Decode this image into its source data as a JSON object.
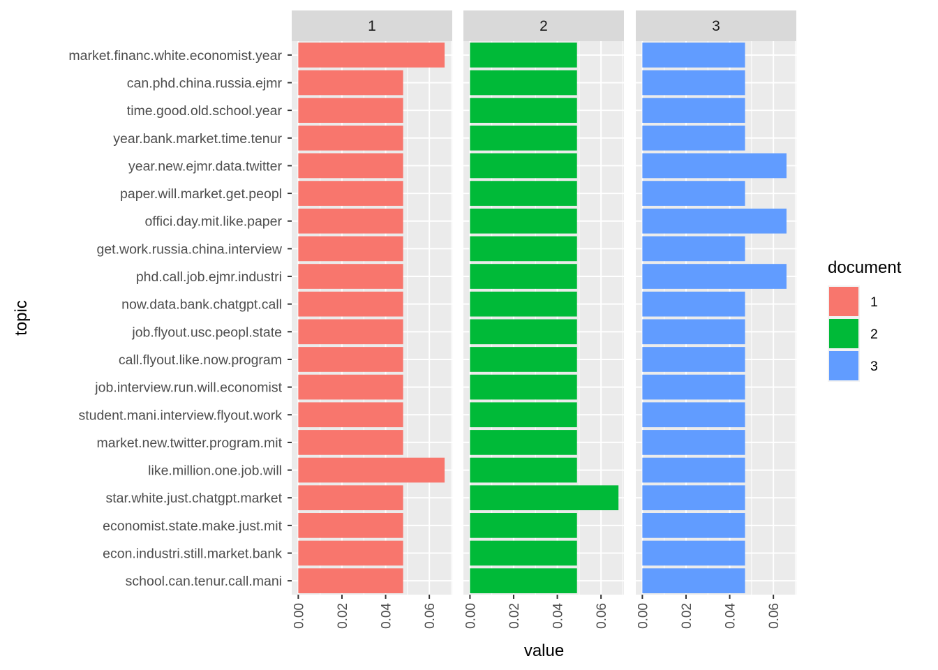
{
  "chart_data": {
    "type": "bar",
    "orientation": "horizontal",
    "facets": [
      "1",
      "2",
      "3"
    ],
    "categories": [
      "market.financ.white.economist.year",
      "can.phd.china.russia.ejmr",
      "time.good.old.school.year",
      "year.bank.market.time.tenur",
      "year.new.ejmr.data.twitter",
      "paper.will.market.get.peopl",
      "offici.day.mit.like.paper",
      "get.work.russia.china.interview",
      "phd.call.job.ejmr.industri",
      "now.data.bank.chatgpt.call",
      "job.flyout.usc.peopl.state",
      "call.flyout.like.now.program",
      "job.interview.run.will.economist",
      "student.mani.interview.flyout.work",
      "market.new.twitter.program.mit",
      "like.million.one.job.will",
      "star.white.just.chatgpt.market",
      "economist.state.make.just.mit",
      "econ.industri.still.market.bank",
      "school.can.tenur.call.mani"
    ],
    "series": [
      {
        "name": "1",
        "color": "#F8766D",
        "values": [
          0.067,
          0.048,
          0.048,
          0.048,
          0.048,
          0.048,
          0.048,
          0.048,
          0.048,
          0.048,
          0.048,
          0.048,
          0.048,
          0.048,
          0.048,
          0.067,
          0.048,
          0.048,
          0.048,
          0.048
        ]
      },
      {
        "name": "2",
        "color": "#00BA38",
        "values": [
          0.049,
          0.049,
          0.049,
          0.049,
          0.049,
          0.049,
          0.049,
          0.049,
          0.049,
          0.049,
          0.049,
          0.049,
          0.049,
          0.049,
          0.049,
          0.049,
          0.068,
          0.049,
          0.049,
          0.049
        ]
      },
      {
        "name": "3",
        "color": "#619CFF",
        "values": [
          0.047,
          0.047,
          0.047,
          0.047,
          0.066,
          0.047,
          0.066,
          0.047,
          0.066,
          0.047,
          0.047,
          0.047,
          0.047,
          0.047,
          0.047,
          0.047,
          0.047,
          0.047,
          0.047,
          0.047
        ]
      }
    ],
    "xlabel": "value",
    "ylabel": "topic",
    "xlim": [
      -0.003,
      0.0705
    ],
    "xticks": [
      0.0,
      0.02,
      0.04,
      0.06
    ],
    "xtick_labels": [
      "0.00",
      "0.02",
      "0.04",
      "0.06"
    ],
    "legend_title": "document",
    "legend_position": "right",
    "grid": true,
    "panel_background": "#EBEBEB",
    "strip_background": "#D9D9D9"
  }
}
